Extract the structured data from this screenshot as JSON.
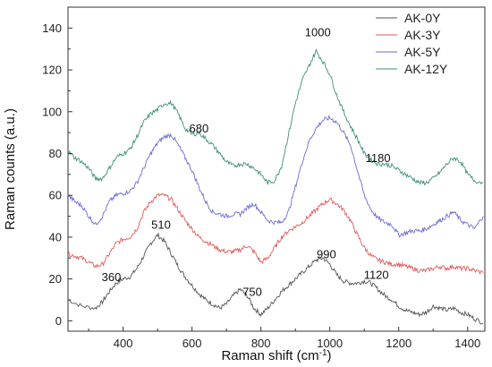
{
  "chart_data": {
    "type": "line",
    "xlabel": "Raman shift (cm",
    "xlabel_sup": "-1",
    "xlabel_end": ")",
    "ylabel": "Raman counts (a.u.)",
    "xlim": [
      240,
      1450
    ],
    "ylim": [
      -5,
      150
    ],
    "xticks": [
      400,
      600,
      800,
      1000,
      1200,
      1400
    ],
    "yticks": [
      0,
      20,
      40,
      60,
      80,
      100,
      120,
      140
    ],
    "legend_position": "top-right",
    "series": [
      {
        "name": "AK-0Y",
        "color": "#555555",
        "points": [
          [
            240,
            10
          ],
          [
            280,
            7
          ],
          [
            320,
            6
          ],
          [
            340,
            9
          ],
          [
            360,
            14
          ],
          [
            380,
            18
          ],
          [
            400,
            20
          ],
          [
            420,
            21
          ],
          [
            440,
            25
          ],
          [
            460,
            31
          ],
          [
            480,
            37
          ],
          [
            500,
            41
          ],
          [
            520,
            38
          ],
          [
            540,
            32
          ],
          [
            560,
            26
          ],
          [
            580,
            21
          ],
          [
            600,
            17
          ],
          [
            620,
            13
          ],
          [
            640,
            10
          ],
          [
            660,
            8
          ],
          [
            680,
            6
          ],
          [
            700,
            8
          ],
          [
            720,
            12
          ],
          [
            740,
            15
          ],
          [
            760,
            12
          ],
          [
            780,
            6
          ],
          [
            800,
            3
          ],
          [
            820,
            6
          ],
          [
            840,
            10
          ],
          [
            860,
            14
          ],
          [
            880,
            17
          ],
          [
            900,
            20
          ],
          [
            920,
            23
          ],
          [
            940,
            26
          ],
          [
            960,
            29
          ],
          [
            980,
            30
          ],
          [
            1000,
            27
          ],
          [
            1020,
            22
          ],
          [
            1040,
            19
          ],
          [
            1060,
            18
          ],
          [
            1080,
            18
          ],
          [
            1100,
            19
          ],
          [
            1120,
            18
          ],
          [
            1140,
            15
          ],
          [
            1160,
            12
          ],
          [
            1180,
            10
          ],
          [
            1200,
            7
          ],
          [
            1220,
            5
          ],
          [
            1240,
            4
          ],
          [
            1260,
            3
          ],
          [
            1280,
            4
          ],
          [
            1300,
            7
          ],
          [
            1320,
            6
          ],
          [
            1340,
            5
          ],
          [
            1360,
            6
          ],
          [
            1380,
            4
          ],
          [
            1400,
            3
          ],
          [
            1420,
            1
          ],
          [
            1445,
            -1
          ]
        ]
      },
      {
        "name": "AK-3Y",
        "color": "#e05a5a",
        "points": [
          [
            240,
            32
          ],
          [
            260,
            31
          ],
          [
            280,
            30
          ],
          [
            300,
            28
          ],
          [
            320,
            26
          ],
          [
            340,
            27
          ],
          [
            360,
            32
          ],
          [
            380,
            37
          ],
          [
            400,
            39
          ],
          [
            420,
            40
          ],
          [
            440,
            44
          ],
          [
            460,
            52
          ],
          [
            480,
            57
          ],
          [
            500,
            60
          ],
          [
            520,
            60
          ],
          [
            540,
            58
          ],
          [
            560,
            53
          ],
          [
            580,
            48
          ],
          [
            600,
            44
          ],
          [
            620,
            40
          ],
          [
            640,
            38
          ],
          [
            660,
            36
          ],
          [
            680,
            34
          ],
          [
            700,
            33
          ],
          [
            720,
            33
          ],
          [
            740,
            34
          ],
          [
            760,
            36
          ],
          [
            780,
            33
          ],
          [
            800,
            28
          ],
          [
            820,
            30
          ],
          [
            840,
            35
          ],
          [
            860,
            40
          ],
          [
            880,
            43
          ],
          [
            900,
            45
          ],
          [
            920,
            47
          ],
          [
            940,
            50
          ],
          [
            960,
            53
          ],
          [
            980,
            56
          ],
          [
            1000,
            58
          ],
          [
            1020,
            56
          ],
          [
            1040,
            53
          ],
          [
            1060,
            48
          ],
          [
            1080,
            41
          ],
          [
            1100,
            35
          ],
          [
            1120,
            31
          ],
          [
            1140,
            29
          ],
          [
            1160,
            28
          ],
          [
            1180,
            27
          ],
          [
            1200,
            27
          ],
          [
            1220,
            26
          ],
          [
            1240,
            25
          ],
          [
            1260,
            24
          ],
          [
            1280,
            24
          ],
          [
            1300,
            25
          ],
          [
            1320,
            26
          ],
          [
            1340,
            25
          ],
          [
            1360,
            26
          ],
          [
            1380,
            25
          ],
          [
            1400,
            25
          ],
          [
            1420,
            24
          ],
          [
            1445,
            23
          ]
        ]
      },
      {
        "name": "AK-5Y",
        "color": "#6b6bd6",
        "points": [
          [
            240,
            60
          ],
          [
            260,
            57
          ],
          [
            280,
            55
          ],
          [
            300,
            50
          ],
          [
            320,
            46
          ],
          [
            340,
            50
          ],
          [
            360,
            57
          ],
          [
            380,
            60
          ],
          [
            400,
            61
          ],
          [
            420,
            62
          ],
          [
            440,
            66
          ],
          [
            460,
            73
          ],
          [
            480,
            80
          ],
          [
            500,
            85
          ],
          [
            520,
            88
          ],
          [
            540,
            89
          ],
          [
            560,
            84
          ],
          [
            580,
            78
          ],
          [
            600,
            72
          ],
          [
            620,
            64
          ],
          [
            640,
            57
          ],
          [
            660,
            52
          ],
          [
            680,
            51
          ],
          [
            700,
            50
          ],
          [
            720,
            51
          ],
          [
            740,
            51
          ],
          [
            760,
            54
          ],
          [
            780,
            56
          ],
          [
            800,
            52
          ],
          [
            820,
            48
          ],
          [
            840,
            47
          ],
          [
            860,
            47
          ],
          [
            880,
            52
          ],
          [
            900,
            64
          ],
          [
            920,
            76
          ],
          [
            940,
            86
          ],
          [
            960,
            92
          ],
          [
            980,
            96
          ],
          [
            1000,
            97
          ],
          [
            1020,
            95
          ],
          [
            1040,
            90
          ],
          [
            1060,
            84
          ],
          [
            1080,
            72
          ],
          [
            1100,
            60
          ],
          [
            1120,
            53
          ],
          [
            1140,
            49
          ],
          [
            1160,
            47
          ],
          [
            1180,
            46
          ],
          [
            1200,
            41
          ],
          [
            1220,
            42
          ],
          [
            1240,
            43
          ],
          [
            1260,
            43
          ],
          [
            1280,
            44
          ],
          [
            1300,
            46
          ],
          [
            1320,
            48
          ],
          [
            1340,
            50
          ],
          [
            1360,
            52
          ],
          [
            1380,
            48
          ],
          [
            1400,
            46
          ],
          [
            1420,
            44
          ],
          [
            1445,
            50
          ]
        ]
      },
      {
        "name": "AK-12Y",
        "color": "#3f8f7d",
        "points": [
          [
            240,
            81
          ],
          [
            260,
            78
          ],
          [
            280,
            76
          ],
          [
            300,
            73
          ],
          [
            320,
            68
          ],
          [
            340,
            68
          ],
          [
            360,
            73
          ],
          [
            380,
            78
          ],
          [
            400,
            80
          ],
          [
            420,
            82
          ],
          [
            440,
            88
          ],
          [
            460,
            95
          ],
          [
            480,
            99
          ],
          [
            500,
            101
          ],
          [
            520,
            104
          ],
          [
            540,
            104
          ],
          [
            560,
            99
          ],
          [
            580,
            92
          ],
          [
            600,
            89
          ],
          [
            620,
            90
          ],
          [
            640,
            87
          ],
          [
            660,
            84
          ],
          [
            680,
            80
          ],
          [
            700,
            76
          ],
          [
            720,
            74
          ],
          [
            740,
            75
          ],
          [
            760,
            75
          ],
          [
            780,
            73
          ],
          [
            800,
            70
          ],
          [
            820,
            66
          ],
          [
            840,
            67
          ],
          [
            860,
            74
          ],
          [
            880,
            89
          ],
          [
            900,
            104
          ],
          [
            920,
            115
          ],
          [
            940,
            122
          ],
          [
            960,
            129
          ],
          [
            980,
            124
          ],
          [
            1000,
            118
          ],
          [
            1020,
            108
          ],
          [
            1040,
            100
          ],
          [
            1060,
            93
          ],
          [
            1080,
            87
          ],
          [
            1100,
            80
          ],
          [
            1120,
            77
          ],
          [
            1140,
            75
          ],
          [
            1160,
            75
          ],
          [
            1180,
            74
          ],
          [
            1200,
            72
          ],
          [
            1220,
            70
          ],
          [
            1240,
            68
          ],
          [
            1260,
            66
          ],
          [
            1280,
            66
          ],
          [
            1300,
            68
          ],
          [
            1320,
            71
          ],
          [
            1340,
            75
          ],
          [
            1360,
            78
          ],
          [
            1380,
            76
          ],
          [
            1400,
            70
          ],
          [
            1420,
            67
          ],
          [
            1445,
            66
          ]
        ]
      }
    ],
    "annotations": [
      {
        "text": "680",
        "x": 620,
        "y": 90
      },
      {
        "text": "1000",
        "x": 965,
        "y": 136
      },
      {
        "text": "1180",
        "x": 1140,
        "y": 76
      },
      {
        "text": "510",
        "x": 510,
        "y": 44
      },
      {
        "text": "360",
        "x": 366,
        "y": 19
      },
      {
        "text": "990",
        "x": 990,
        "y": 30
      },
      {
        "text": "750",
        "x": 775,
        "y": 12
      },
      {
        "text": "1120",
        "x": 1135,
        "y": 20
      }
    ]
  }
}
